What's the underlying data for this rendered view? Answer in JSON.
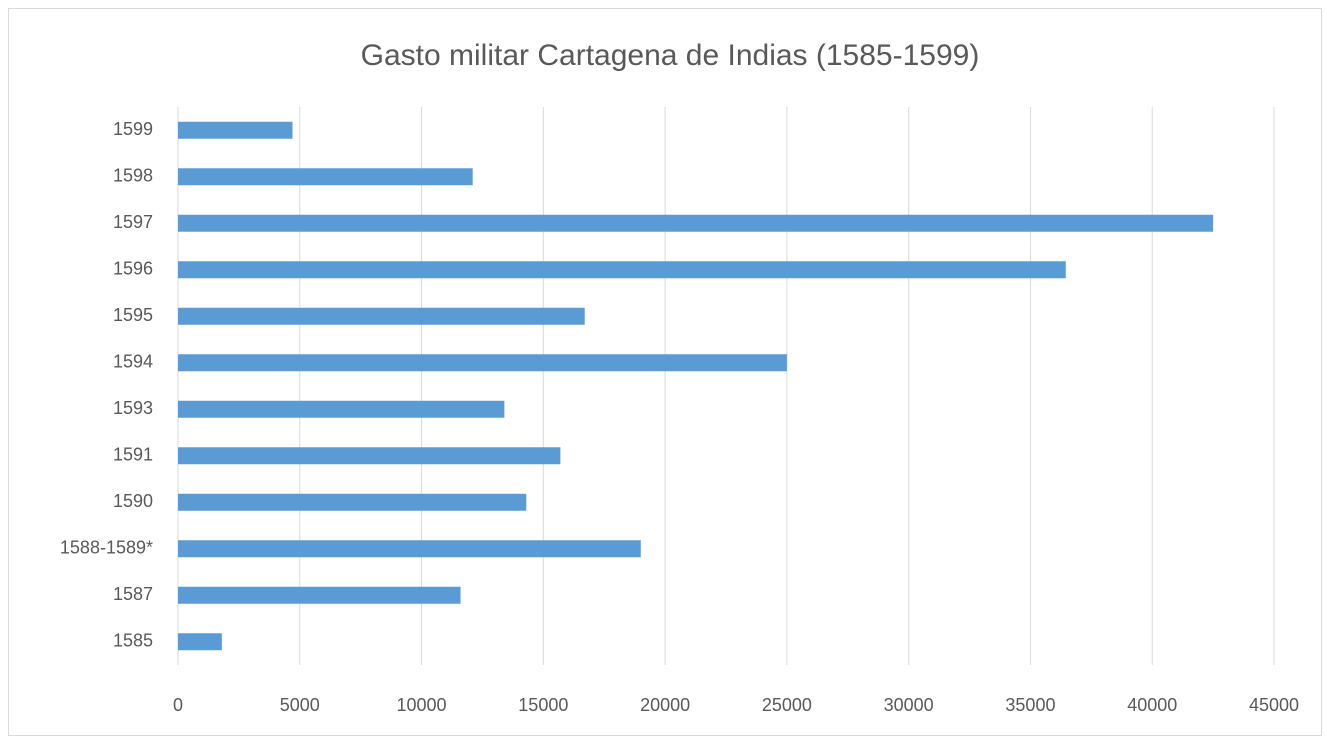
{
  "chart_data": {
    "type": "barh",
    "title": "Gasto militar Cartagena de Indias (1585-1599)",
    "categories": [
      "1585",
      "1587",
      "1588-1589*",
      "1590",
      "1591",
      "1593",
      "1594",
      "1595",
      "1596",
      "1597",
      "1598",
      "1599"
    ],
    "values": [
      1800,
      11600,
      19000,
      14300,
      15700,
      13400,
      25000,
      16700,
      36450,
      42500,
      12100,
      4700
    ],
    "color": "#5b9bd5",
    "xlim": [
      0,
      45000
    ],
    "xticks": [
      0,
      5000,
      10000,
      15000,
      20000,
      25000,
      30000,
      35000,
      40000,
      45000
    ],
    "grid": true
  }
}
